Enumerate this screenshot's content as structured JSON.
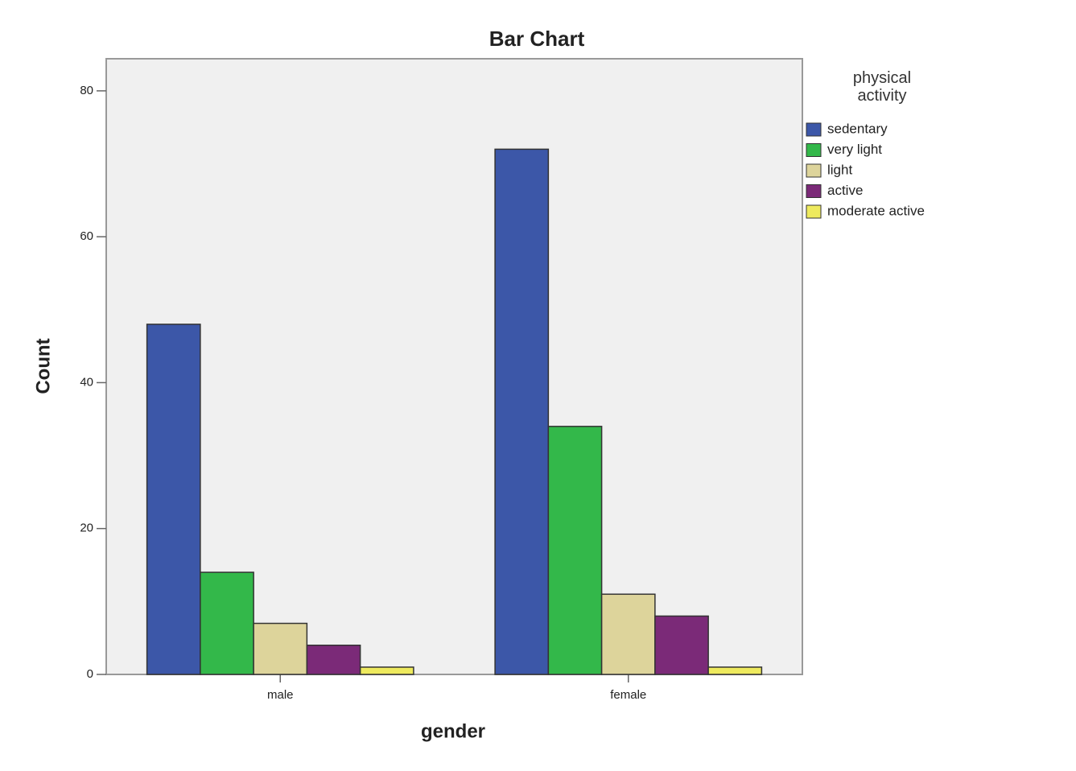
{
  "chart_data": {
    "type": "bar",
    "title": "Bar Chart",
    "x_label": "gender",
    "y_label": "Count",
    "legend_title": "physical activity",
    "categories": [
      "male",
      "female"
    ],
    "series": [
      {
        "name": "sedentary",
        "color": "#3c57a8",
        "values": [
          48,
          72
        ]
      },
      {
        "name": "very light",
        "color": "#33b84a",
        "values": [
          14,
          34
        ]
      },
      {
        "name": "light",
        "color": "#ddd49b",
        "values": [
          7,
          11
        ]
      },
      {
        "name": "active",
        "color": "#7b2a78",
        "values": [
          4,
          8
        ]
      },
      {
        "name": "moderate active",
        "color": "#eeea5e",
        "values": [
          1,
          1
        ]
      }
    ],
    "ylim": [
      0,
      84.4
    ],
    "yticks": [
      0,
      20,
      40,
      60,
      80
    ],
    "grid": false,
    "legend": "right"
  }
}
